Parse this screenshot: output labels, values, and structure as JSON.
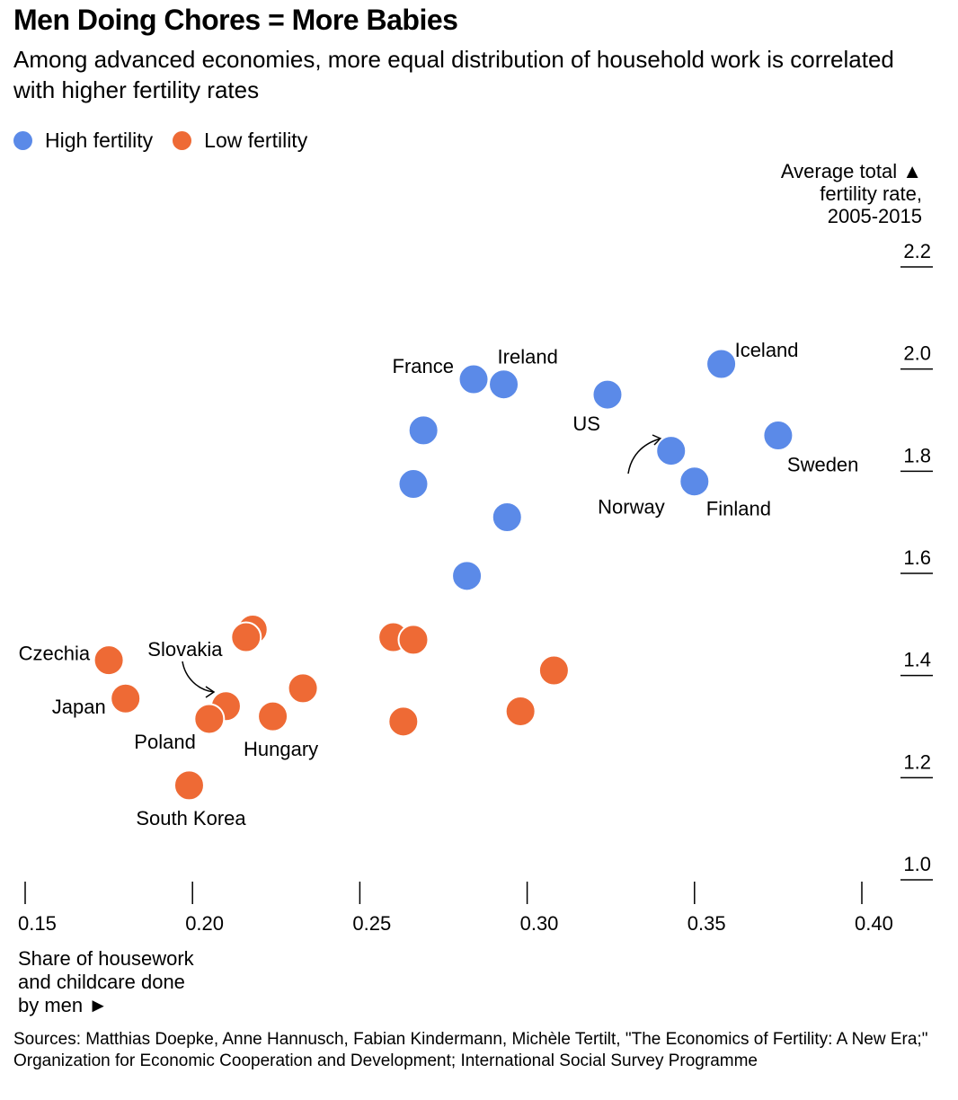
{
  "chart_data": {
    "type": "scatter",
    "title": "Men Doing Chores = More Babies",
    "subtitle": "Among advanced economies, more equal distribution of household work is correlated with higher fertility rates",
    "xlabel": "Share of housework\nand childcare done\nby men ►",
    "ylabel": "Average total ▲\nfertility rate,\n2005-2015",
    "xlim": [
      0.15,
      0.4
    ],
    "ylim": [
      1.0,
      2.2
    ],
    "xticks": [
      0.15,
      0.2,
      0.25,
      0.3,
      0.35,
      0.4
    ],
    "xtick_labels": [
      "0.15",
      "0.20",
      "0.25",
      "0.30",
      "0.35",
      "0.40"
    ],
    "yticks": [
      1.0,
      1.2,
      1.4,
      1.6,
      1.8,
      2.0,
      2.2
    ],
    "ytick_labels": [
      "1.0",
      "1.2",
      "1.4",
      "1.6",
      "1.8",
      "2.0",
      "2.2"
    ],
    "legend_position": "top-left",
    "series": [
      {
        "name": "High fertility",
        "color": "#5b8ae8",
        "points": [
          {
            "x": 0.284,
            "y": 1.98,
            "label": "France"
          },
          {
            "x": 0.293,
            "y": 1.97,
            "label": "Ireland"
          },
          {
            "x": 0.324,
            "y": 1.95,
            "label": "US"
          },
          {
            "x": 0.358,
            "y": 2.01,
            "label": "Iceland"
          },
          {
            "x": 0.375,
            "y": 1.87,
            "label": "Sweden"
          },
          {
            "x": 0.343,
            "y": 1.84,
            "label": "Norway"
          },
          {
            "x": 0.35,
            "y": 1.78,
            "label": "Finland"
          },
          {
            "x": 0.269,
            "y": 1.88,
            "label": ""
          },
          {
            "x": 0.266,
            "y": 1.775,
            "label": ""
          },
          {
            "x": 0.294,
            "y": 1.71,
            "label": ""
          },
          {
            "x": 0.282,
            "y": 1.595,
            "label": ""
          }
        ]
      },
      {
        "name": "Low fertility",
        "color": "#ee6a35",
        "points": [
          {
            "x": 0.175,
            "y": 1.43,
            "label": "Czechia"
          },
          {
            "x": 0.18,
            "y": 1.355,
            "label": "Japan"
          },
          {
            "x": 0.21,
            "y": 1.34,
            "label": "Slovakia"
          },
          {
            "x": 0.205,
            "y": 1.315,
            "label": "Poland"
          },
          {
            "x": 0.224,
            "y": 1.32,
            "label": "Hungary"
          },
          {
            "x": 0.199,
            "y": 1.185,
            "label": "South Korea"
          },
          {
            "x": 0.218,
            "y": 1.49,
            "label": ""
          },
          {
            "x": 0.216,
            "y": 1.475,
            "label": ""
          },
          {
            "x": 0.233,
            "y": 1.375,
            "label": ""
          },
          {
            "x": 0.26,
            "y": 1.475,
            "label": ""
          },
          {
            "x": 0.266,
            "y": 1.47,
            "label": ""
          },
          {
            "x": 0.263,
            "y": 1.31,
            "label": ""
          },
          {
            "x": 0.298,
            "y": 1.33,
            "label": ""
          },
          {
            "x": 0.308,
            "y": 1.41,
            "label": ""
          }
        ]
      }
    ]
  },
  "sources": "Sources: Matthias Doepke, Anne Hannusch, Fabian Kindermann, Michèle Tertilt, \"The Economics of Fertility: A New Era;\" Organization for Economic Cooperation and Development; International Social Survey Programme"
}
